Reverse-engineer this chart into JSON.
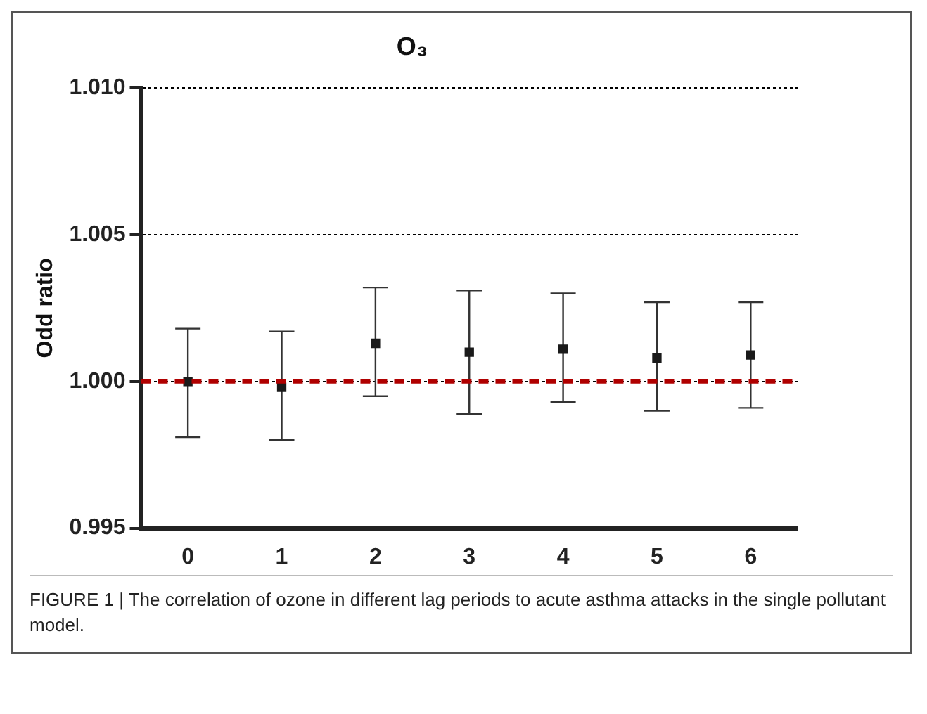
{
  "chart_data": {
    "type": "scatter",
    "title": "O₃",
    "ylabel": "Odd ratio",
    "categories": [
      "0",
      "1",
      "2",
      "3",
      "4",
      "5",
      "6"
    ],
    "series": [
      {
        "color": "#1a1a1a",
        "values": [
          1.0,
          0.9998,
          1.0013,
          1.001,
          1.0011,
          1.0008,
          1.0009
        ],
        "errors": [
          [
            0.9981,
            1.0018
          ],
          [
            0.998,
            1.0017
          ],
          [
            0.9995,
            1.0032
          ],
          [
            0.9989,
            1.0031
          ],
          [
            0.9993,
            1.003
          ],
          [
            0.999,
            1.0027
          ],
          [
            0.9991,
            1.0027
          ]
        ]
      }
    ],
    "ylim": [
      0.995,
      1.01
    ],
    "yticks": [
      0.995,
      {
        "value": 1,
        "label": "1.000"
      },
      1.005,
      {
        "value": 1.01,
        "label": "1.010"
      }
    ],
    "grid": "y",
    "legend": false,
    "marker": "square",
    "ref_lines": [
      {
        "axis": "y",
        "value": 1.0,
        "color": "#b00000",
        "line_style": "dashed"
      }
    ],
    "annotations": [
      "FIGURE 1 | The correlation of ozone in different lag periods to acute asthma attacks in the single pollutant model."
    ]
  }
}
